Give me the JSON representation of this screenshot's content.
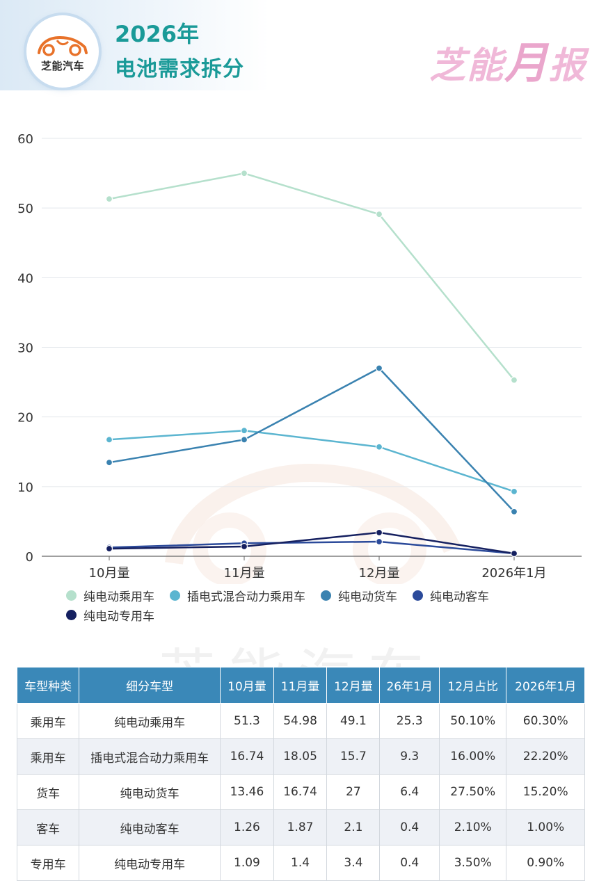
{
  "header": {
    "logo_text": "芝能汽车",
    "title_line1": "2026年",
    "title_line2": "电池需求拆分",
    "brand_part1": "芝能",
    "brand_part2": "月",
    "brand_part3": "报"
  },
  "watermark": "芝能汽车",
  "chart_data": {
    "type": "line",
    "categories": [
      "10月量",
      "11月量",
      "12月量",
      "2026年1月"
    ],
    "ylim": [
      0,
      60
    ],
    "yticks": [
      0,
      10,
      20,
      30,
      40,
      50,
      60
    ],
    "grid": true,
    "legend_position": "bottom",
    "series": [
      {
        "name": "纯电动乘用车",
        "values": [
          51.3,
          54.98,
          49.1,
          25.3
        ],
        "color": "#b5e0cc"
      },
      {
        "name": "插电式混合动力乘用车",
        "values": [
          16.74,
          18.05,
          15.7,
          9.3
        ],
        "color": "#5bb5d0"
      },
      {
        "name": "纯电动货车",
        "values": [
          13.46,
          16.74,
          27,
          6.4
        ],
        "color": "#3a82b0"
      },
      {
        "name": "纯电动客车",
        "values": [
          1.26,
          1.87,
          2.1,
          0.4
        ],
        "color": "#2b4a9a"
      },
      {
        "name": "纯电动专用车",
        "values": [
          1.09,
          1.4,
          3.4,
          0.4
        ],
        "color": "#152060"
      }
    ]
  },
  "table": {
    "headers": [
      "车型种类",
      "细分车型",
      "10月量",
      "11月量",
      "12月量",
      "26年1月",
      "12月占比",
      "2026年1月"
    ],
    "rows": [
      [
        "乘用车",
        "纯电动乘用车",
        "51.3",
        "54.98",
        "49.1",
        "25.3",
        "50.10%",
        "60.30%"
      ],
      [
        "乘用车",
        "插电式混合动力乘用车",
        "16.74",
        "18.05",
        "15.7",
        "9.3",
        "16.00%",
        "22.20%"
      ],
      [
        "货车",
        "纯电动货车",
        "13.46",
        "16.74",
        "27",
        "6.4",
        "27.50%",
        "15.20%"
      ],
      [
        "客车",
        "纯电动客车",
        "1.26",
        "1.87",
        "2.1",
        "0.4",
        "2.10%",
        "1.00%"
      ],
      [
        "专用车",
        "纯电动专用车",
        "1.09",
        "1.4",
        "3.4",
        "0.4",
        "3.50%",
        "0.90%"
      ]
    ]
  }
}
